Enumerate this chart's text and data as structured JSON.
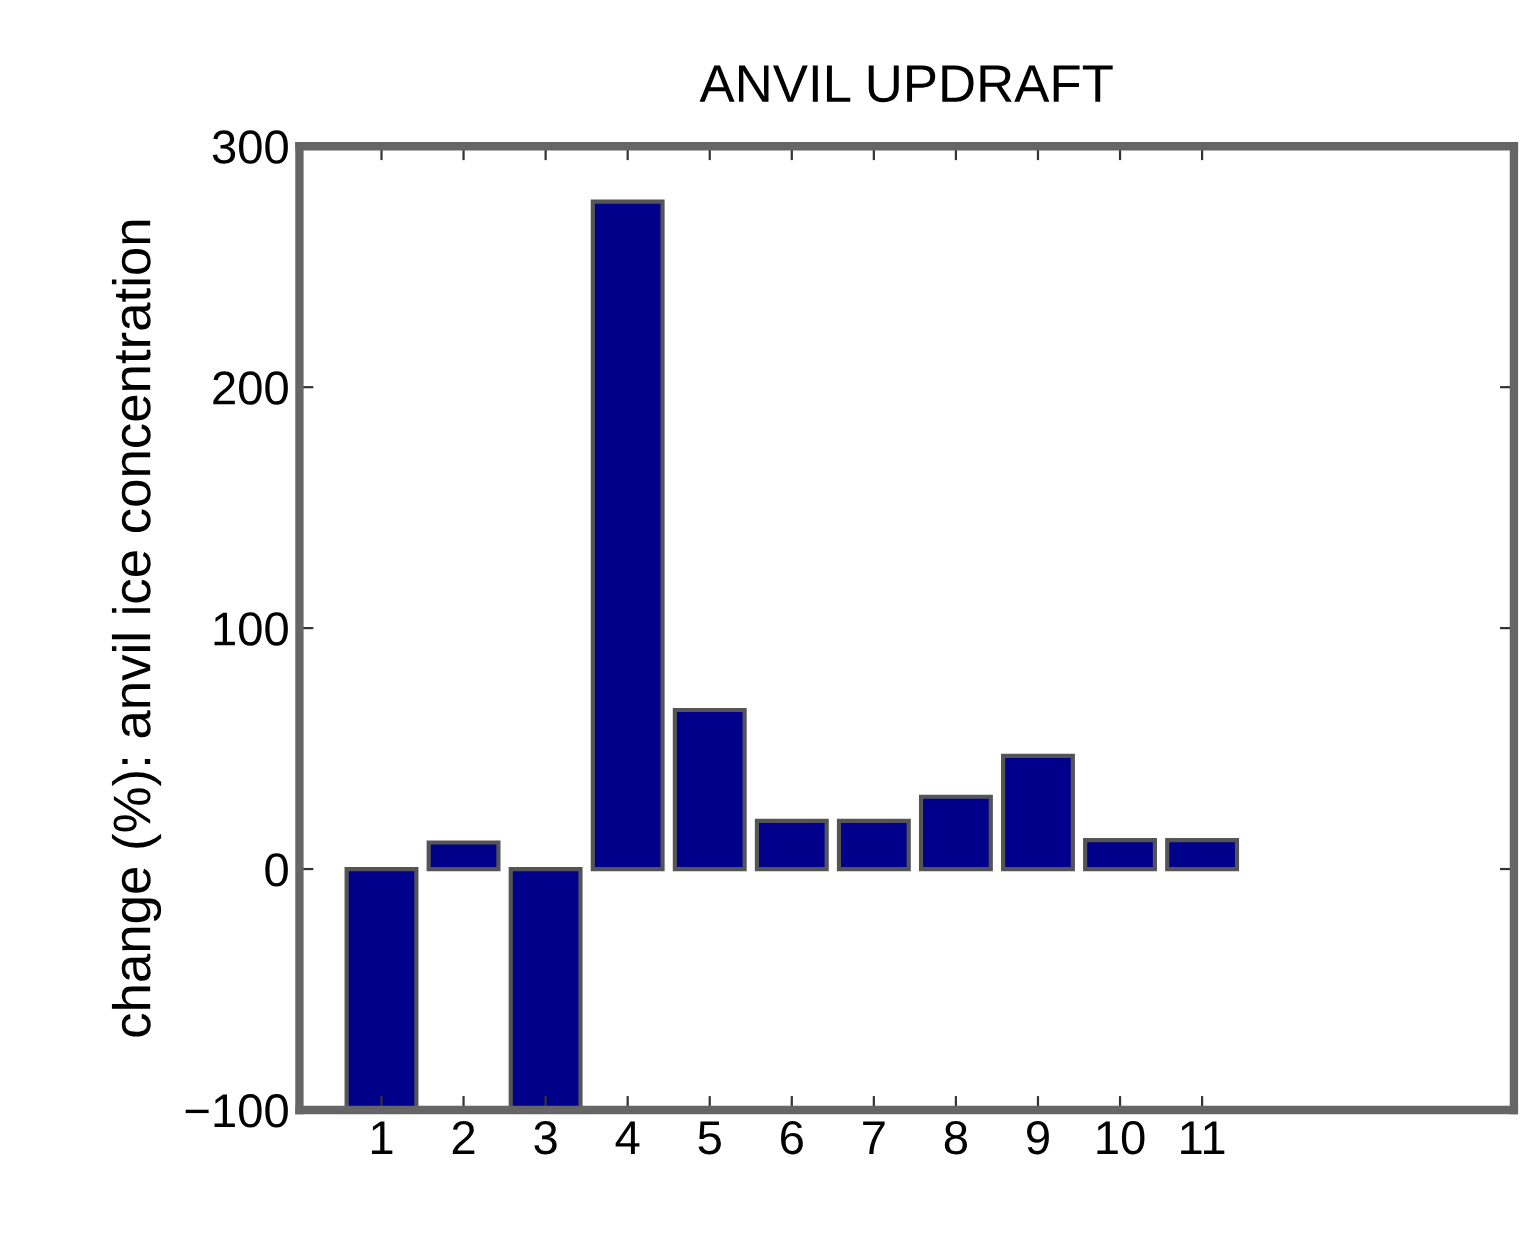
{
  "chart_data": {
    "type": "bar",
    "title": "ANVIL UPDRAFT",
    "ylabel": "change (%): anvil ice concentration",
    "x": [
      1,
      2,
      3,
      4,
      5,
      6,
      7,
      8,
      9,
      10,
      11
    ],
    "values": [
      -100,
      11,
      -100,
      277,
      66,
      20,
      20,
      30,
      47,
      12,
      12
    ],
    "color": "#00008b",
    "xlim": [
      0,
      14.8
    ],
    "xticks": [
      1,
      2,
      3,
      4,
      5,
      6,
      7,
      8,
      9,
      10,
      11
    ],
    "ylim": [
      -100,
      300
    ],
    "yticks": [
      -100,
      0,
      100,
      200,
      300
    ],
    "grid": false,
    "legend": false
  }
}
